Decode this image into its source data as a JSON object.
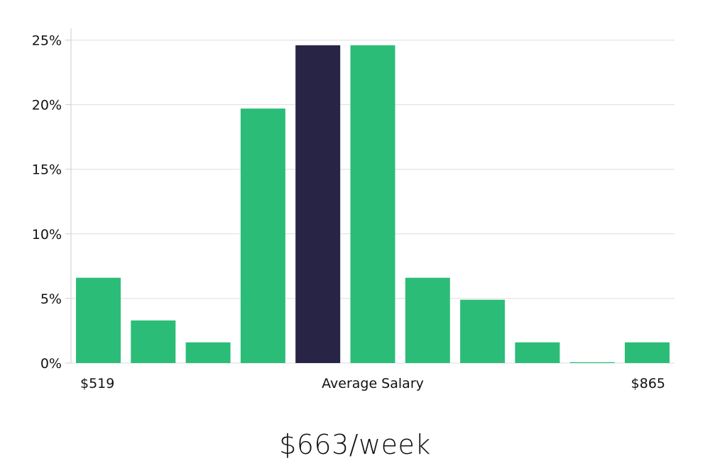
{
  "chart_data": {
    "type": "bar",
    "title": "",
    "xlabel": "Average Salary",
    "ylabel": "",
    "x_start_label": "$519",
    "x_end_label": "$865",
    "values": [
      6.6,
      3.3,
      1.6,
      19.7,
      24.6,
      24.6,
      6.6,
      4.9,
      1.6,
      0.0,
      1.6
    ],
    "highlight_index": 4,
    "ylim": [
      0,
      26
    ],
    "yticks": [
      0,
      5,
      10,
      15,
      20,
      25
    ],
    "ytick_labels": [
      "0%",
      "5%",
      "10%",
      "15%",
      "20%",
      "25%"
    ],
    "grid": true,
    "colors": {
      "bar": "#2bbd78",
      "highlight": "#282446",
      "grid": "#dddddd",
      "axis": "#cccccc"
    }
  },
  "summary": {
    "salary": "$663/week"
  }
}
